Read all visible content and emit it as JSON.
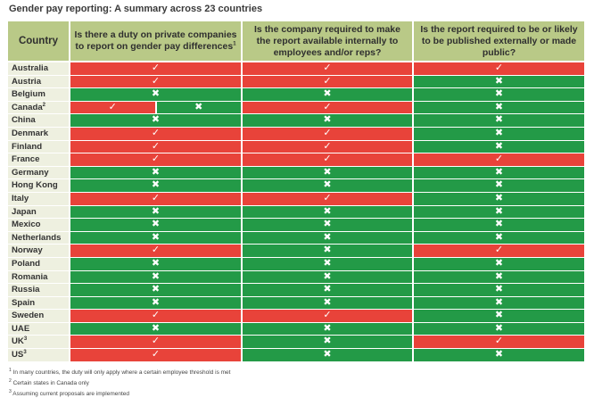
{
  "title": "Gender pay reporting: A summary across 23 countries",
  "headers": {
    "country": "Country",
    "q1": "Is there a duty on private companies to report on gender pay differences",
    "q1_sup": "1",
    "q2": "Is the company required to make the report available internally to employees and/or reps?",
    "q3": "Is the report required to be or likely to be published externally or made public?"
  },
  "colors": {
    "yes": "#e8433a",
    "no": "#239a47",
    "header": "#b9c987",
    "country_bg": "#eef0e0"
  },
  "symbols": {
    "yes": "✓",
    "no": "✖"
  },
  "rows": [
    {
      "country": "Australia",
      "sup": "",
      "q1": "yes",
      "q2": "yes",
      "q3": "yes"
    },
    {
      "country": "Austria",
      "sup": "",
      "q1": "yes",
      "q2": "yes",
      "q3": "no"
    },
    {
      "country": "Belgium",
      "sup": "",
      "q1": "no",
      "q2": "no",
      "q3": "no"
    },
    {
      "country": "Canada",
      "sup": "2",
      "q1": "split",
      "q2": "yes",
      "q3": "no"
    },
    {
      "country": "China",
      "sup": "",
      "q1": "no",
      "q2": "no",
      "q3": "no"
    },
    {
      "country": "Denmark",
      "sup": "",
      "q1": "yes",
      "q2": "yes",
      "q3": "no"
    },
    {
      "country": "Finland",
      "sup": "",
      "q1": "yes",
      "q2": "yes",
      "q3": "no"
    },
    {
      "country": "France",
      "sup": "",
      "q1": "yes",
      "q2": "yes",
      "q3": "yes"
    },
    {
      "country": "Germany",
      "sup": "",
      "q1": "no",
      "q2": "no",
      "q3": "no"
    },
    {
      "country": "Hong Kong",
      "sup": "",
      "q1": "no",
      "q2": "no",
      "q3": "no"
    },
    {
      "country": "Italy",
      "sup": "",
      "q1": "yes",
      "q2": "yes",
      "q3": "no"
    },
    {
      "country": "Japan",
      "sup": "",
      "q1": "no",
      "q2": "no",
      "q3": "no"
    },
    {
      "country": "Mexico",
      "sup": "",
      "q1": "no",
      "q2": "no",
      "q3": "no"
    },
    {
      "country": "Netherlands",
      "sup": "",
      "q1": "no",
      "q2": "no",
      "q3": "no"
    },
    {
      "country": "Norway",
      "sup": "",
      "q1": "yes",
      "q2": "no",
      "q3": "yes"
    },
    {
      "country": "Poland",
      "sup": "",
      "q1": "no",
      "q2": "no",
      "q3": "no"
    },
    {
      "country": "Romania",
      "sup": "",
      "q1": "no",
      "q2": "no",
      "q3": "no"
    },
    {
      "country": "Russia",
      "sup": "",
      "q1": "no",
      "q2": "no",
      "q3": "no"
    },
    {
      "country": "Spain",
      "sup": "",
      "q1": "no",
      "q2": "no",
      "q3": "no"
    },
    {
      "country": "Sweden",
      "sup": "",
      "q1": "yes",
      "q2": "yes",
      "q3": "no"
    },
    {
      "country": "UAE",
      "sup": "",
      "q1": "no",
      "q2": "no",
      "q3": "no"
    },
    {
      "country": "UK",
      "sup": "3",
      "q1": "yes",
      "q2": "no",
      "q3": "yes"
    },
    {
      "country": "US",
      "sup": "3",
      "q1": "yes",
      "q2": "no",
      "q3": "no"
    }
  ],
  "canada_split": [
    "yes",
    "no"
  ],
  "footnotes": [
    "In many countries, the duty will only apply where a certain employee threshold is met",
    "Certain states in Canada only",
    "Assuming current proposals are implemented"
  ]
}
